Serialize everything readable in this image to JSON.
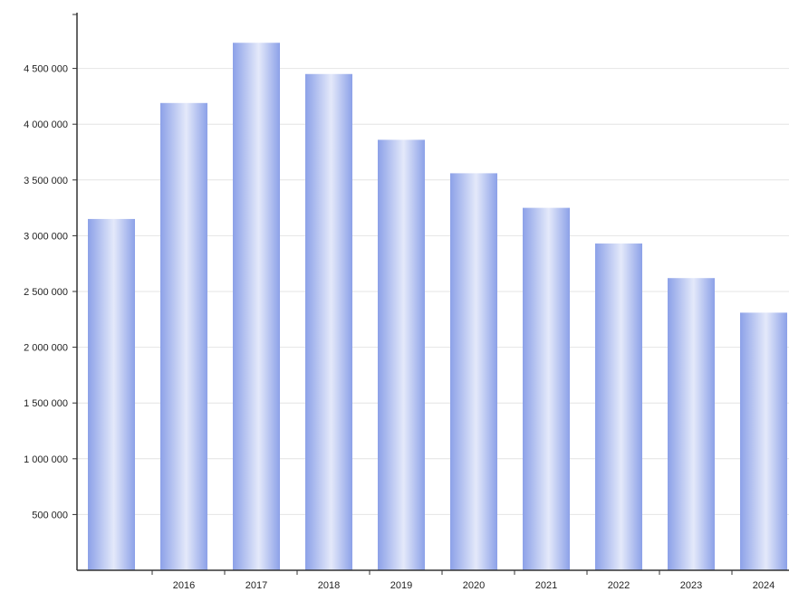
{
  "chart_data": {
    "type": "bar",
    "title": "",
    "xlabel": "",
    "ylabel": "",
    "categories": [
      "",
      "2016",
      "2017",
      "2018",
      "2019",
      "2020",
      "2021",
      "2022",
      "2023",
      "2024"
    ],
    "values": [
      3150000,
      4190000,
      4730000,
      4450000,
      3860000,
      3560000,
      3250000,
      2930000,
      2620000,
      2310000
    ],
    "ylim": [
      0,
      5000000
    ],
    "yticks": [
      500000,
      1000000,
      1500000,
      2000000,
      2500000,
      3000000,
      3500000,
      4000000,
      4500000
    ],
    "ytick_labels": [
      "500 000",
      "1 000 000",
      "1 500 000",
      "2 000 000",
      "2 500 000",
      "3 000 000",
      "3 500 000",
      "4 000 000",
      "4 500 000"
    ],
    "grid": true,
    "bar_color_light": "#e4e9fa",
    "bar_color_dark": "#8ca1e8"
  }
}
